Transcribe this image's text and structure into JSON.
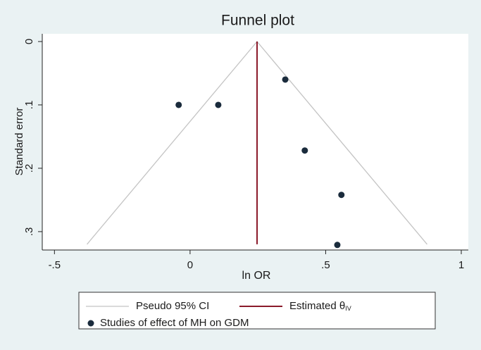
{
  "chart_data": {
    "type": "scatter",
    "title": "Funnel plot",
    "x_label": "ln OR",
    "y_label": "Standard error",
    "xlim": [
      -0.545,
      1.026
    ],
    "ylim": [
      -0.0122,
      0.329
    ],
    "y_reversed": true,
    "xticks": [
      {
        "value": -0.5,
        "label": "-.5"
      },
      0,
      {
        "value": 0.5,
        "label": ".5"
      },
      1
    ],
    "yticks": [
      0,
      {
        "value": 0.1,
        "label": ".1"
      },
      {
        "value": 0.2,
        "label": ".2"
      },
      {
        "value": 0.3,
        "label": ".3"
      }
    ],
    "series": [
      {
        "name": "Pseudo 95% CI",
        "kind": "line",
        "color": "#c4c4c4",
        "x": [
          -0.38,
          0.247,
          0.874
        ],
        "y": [
          0.32,
          0,
          0.32
        ]
      },
      {
        "name": "Studies of effect of MH on GDM",
        "kind": "scatter",
        "color": "#1a2b3c",
        "x": [
          -0.042,
          0.104,
          0.351,
          0.423,
          0.558,
          0.543
        ],
        "y": [
          0.1,
          0.1,
          0.06,
          0.172,
          0.242,
          0.321
        ]
      },
      {
        "name": "Estimated θ",
        "name_subscript": "IV",
        "kind": "line",
        "color": "#8b1a2b",
        "x": [
          0.247,
          0.247
        ],
        "y": [
          0,
          0.32
        ]
      }
    ]
  }
}
